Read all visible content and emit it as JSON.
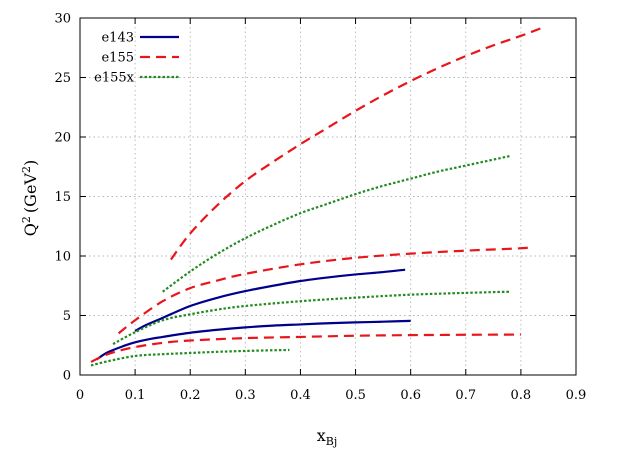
{
  "chart_data": {
    "type": "line",
    "title": "",
    "xlabel": "x",
    "xlabel_sub": "Bj",
    "ylabel": "Q",
    "ylabel_sup": "2",
    "ylabel_unit_open": "(GeV",
    "ylabel_unit_sup": "2",
    "ylabel_unit_close": ")",
    "xlim": [
      0,
      0.9
    ],
    "ylim": [
      0,
      30
    ],
    "xticks": [
      0,
      0.1,
      0.2,
      0.3,
      0.4,
      0.5,
      0.6,
      0.7,
      0.8,
      0.9
    ],
    "yticks": [
      0,
      5,
      10,
      15,
      20,
      25,
      30
    ],
    "grid": true,
    "legend_position": "top-left",
    "series": [
      {
        "name": "e143",
        "color": "#00008b",
        "style": "solid",
        "curves": [
          {
            "x": [
              0.03,
              0.05,
              0.08,
              0.1,
              0.13,
              0.15,
              0.2,
              0.25,
              0.3,
              0.35,
              0.4,
              0.45,
              0.5,
              0.55,
              0.6
            ],
            "y": [
              1.3,
              1.9,
              2.45,
              2.75,
              3.05,
              3.2,
              3.55,
              3.8,
              4.0,
              4.15,
              4.25,
              4.35,
              4.42,
              4.48,
              4.55
            ]
          },
          {
            "x": [
              0.1,
              0.12,
              0.15,
              0.2,
              0.25,
              0.3,
              0.35,
              0.4,
              0.45,
              0.5,
              0.55,
              0.59
            ],
            "y": [
              3.7,
              4.2,
              4.8,
              5.8,
              6.5,
              7.05,
              7.5,
              7.9,
              8.2,
              8.45,
              8.65,
              8.85
            ]
          }
        ]
      },
      {
        "name": "e155",
        "color": "#e8161a",
        "style": "dashed",
        "curves": [
          {
            "x": [
              0.02,
              0.04,
              0.06,
              0.1,
              0.15,
              0.2,
              0.3,
              0.4,
              0.5,
              0.6,
              0.7,
              0.8
            ],
            "y": [
              1.1,
              1.55,
              1.9,
              2.35,
              2.7,
              2.9,
              3.1,
              3.2,
              3.3,
              3.35,
              3.38,
              3.4
            ]
          },
          {
            "x": [
              0.07,
              0.1,
              0.15,
              0.2,
              0.25,
              0.3,
              0.4,
              0.5,
              0.6,
              0.7,
              0.8,
              0.82
            ],
            "y": [
              3.5,
              4.6,
              6.2,
              7.3,
              7.95,
              8.5,
              9.3,
              9.85,
              10.2,
              10.45,
              10.65,
              10.75
            ]
          },
          {
            "x": [
              0.165,
              0.2,
              0.25,
              0.3,
              0.35,
              0.4,
              0.45,
              0.5,
              0.55,
              0.6,
              0.65,
              0.7,
              0.75,
              0.8,
              0.84
            ],
            "y": [
              9.7,
              11.9,
              14.3,
              16.3,
              17.9,
              19.4,
              20.8,
              22.2,
              23.5,
              24.7,
              25.8,
              26.8,
              27.7,
              28.5,
              29.2
            ]
          }
        ]
      },
      {
        "name": "e155x",
        "color": "#228b22",
        "style": "dotted",
        "curves": [
          {
            "x": [
              0.02,
              0.05,
              0.1,
              0.15,
              0.2,
              0.25,
              0.3,
              0.35,
              0.38
            ],
            "y": [
              0.8,
              1.15,
              1.6,
              1.75,
              1.85,
              1.95,
              2.02,
              2.08,
              2.1
            ]
          },
          {
            "x": [
              0.06,
              0.1,
              0.15,
              0.2,
              0.25,
              0.3,
              0.4,
              0.5,
              0.6,
              0.7,
              0.78
            ],
            "y": [
              2.6,
              3.6,
              4.6,
              5.1,
              5.5,
              5.8,
              6.2,
              6.5,
              6.75,
              6.9,
              7.0
            ]
          },
          {
            "x": [
              0.15,
              0.2,
              0.25,
              0.3,
              0.35,
              0.4,
              0.45,
              0.5,
              0.55,
              0.6,
              0.65,
              0.7,
              0.78
            ],
            "y": [
              7.0,
              8.7,
              10.2,
              11.5,
              12.6,
              13.6,
              14.4,
              15.2,
              15.9,
              16.5,
              17.1,
              17.6,
              18.4
            ]
          }
        ]
      }
    ]
  }
}
